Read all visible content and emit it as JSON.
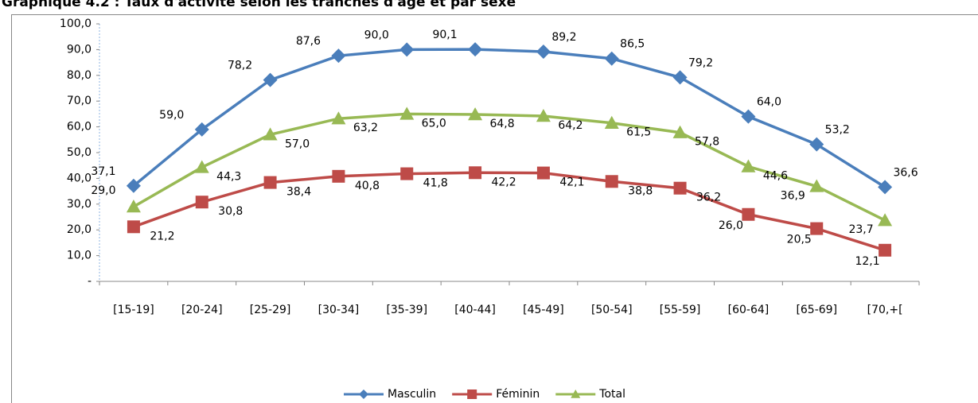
{
  "chart_data": {
    "type": "line",
    "title": "Graphique 4.2 : Taux d'activité selon les tranches d'âge et par sexe",
    "categories": [
      "[15-19]",
      "[20-24]",
      "[25-29]",
      "[30-34]",
      "[35-39]",
      "[40-44]",
      "[45-49]",
      "[50-54]",
      "[55-59]",
      "[60-64]",
      "[65-69]",
      "[70,+["
    ],
    "series": [
      {
        "name": "Masculin",
        "color": "#4a7ebb",
        "marker": "diamond",
        "values": [
          37.1,
          59.0,
          78.2,
          87.6,
          90.0,
          90.1,
          89.2,
          86.5,
          79.2,
          64.0,
          53.2,
          36.6
        ],
        "value_labels": [
          "37,1",
          "59,0",
          "78,2",
          "87,6",
          "90,0",
          "90,1",
          "89,2",
          "86,5",
          "79,2",
          "64,0",
          "53,2",
          "36,6"
        ]
      },
      {
        "name": "Féminin",
        "color": "#be4b48",
        "marker": "square",
        "values": [
          21.2,
          30.8,
          38.4,
          40.8,
          41.8,
          42.2,
          42.1,
          38.8,
          36.2,
          26.0,
          20.5,
          12.1
        ],
        "value_labels": [
          "21,2",
          "30,8",
          "38,4",
          "40,8",
          "41,8",
          "42,2",
          "42,1",
          "38,8",
          "36,2",
          "26,0",
          "20,5",
          "12,1"
        ]
      },
      {
        "name": "Total",
        "color": "#98b954",
        "marker": "triangle",
        "values": [
          29.0,
          44.3,
          57.0,
          63.2,
          65.0,
          64.8,
          64.2,
          61.5,
          57.8,
          44.6,
          36.9,
          23.7
        ],
        "value_labels": [
          "29,0",
          "44,3",
          "57,0",
          "63,2",
          "65,0",
          "64,8",
          "64,2",
          "61,5",
          "57,8",
          "44,6",
          "36,9",
          "23,7"
        ]
      }
    ],
    "ylim": [
      0,
      100
    ],
    "yticks": [
      {
        "value": 0,
        "label": "-"
      },
      {
        "value": 10,
        "label": "10,0"
      },
      {
        "value": 20,
        "label": "20,0"
      },
      {
        "value": 30,
        "label": "30,0"
      },
      {
        "value": 40,
        "label": "40,0"
      },
      {
        "value": 50,
        "label": "50,0"
      },
      {
        "value": 60,
        "label": "60,0"
      },
      {
        "value": 70,
        "label": "70,0"
      },
      {
        "value": 80,
        "label": "80,0"
      },
      {
        "value": 90,
        "label": "90,0"
      },
      {
        "value": 100,
        "label": "100,0"
      }
    ],
    "legend": "bottom"
  }
}
